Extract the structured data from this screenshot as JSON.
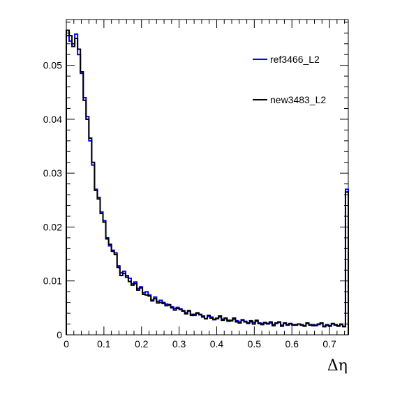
{
  "chart_data": {
    "type": "line",
    "style": "step-histogram",
    "title": "",
    "xlabel": "Δη",
    "ylabel": "",
    "xlim": [
      0,
      0.75
    ],
    "ylim": [
      0,
      0.0585
    ],
    "grid": false,
    "legend_position": "top-right",
    "x_tick_labels": [
      "0",
      "0.1",
      "0.2",
      "0.3",
      "0.4",
      "0.5",
      "0.6",
      "0.7"
    ],
    "x_tick_values": [
      0,
      0.1,
      0.2,
      0.3,
      0.4,
      0.5,
      0.6,
      0.7
    ],
    "y_tick_labels": [
      "0",
      "0.01",
      "0.02",
      "0.03",
      "0.04",
      "0.05"
    ],
    "y_tick_values": [
      0,
      0.01,
      0.02,
      0.03,
      0.04,
      0.05
    ],
    "bin_width": 0.0075,
    "series": [
      {
        "name": "ref3466_L2",
        "color": "#0000ff",
        "values": [
          0.0555,
          0.0545,
          0.054,
          0.0558,
          0.052,
          0.0485,
          0.044,
          0.0405,
          0.036,
          0.0315,
          0.027,
          0.0255,
          0.0228,
          0.0212,
          0.018,
          0.0165,
          0.0157,
          0.0152,
          0.0128,
          0.0115,
          0.0118,
          0.011,
          0.0105,
          0.0095,
          0.0098,
          0.0086,
          0.0089,
          0.0078,
          0.008,
          0.0074,
          0.0065,
          0.007,
          0.0062,
          0.0064,
          0.006,
          0.0057,
          0.0055,
          0.0052,
          0.0049,
          0.0051,
          0.0048,
          0.0045,
          0.0041,
          0.0044,
          0.0038,
          0.0036,
          0.004,
          0.0037,
          0.0035,
          0.003,
          0.0034,
          0.0033,
          0.0028,
          0.0031,
          0.0033,
          0.0029,
          0.003,
          0.0025,
          0.0027,
          0.0029,
          0.0026,
          0.0024,
          0.0027,
          0.0025,
          0.0021,
          0.0024,
          0.0023,
          0.0025,
          0.0022,
          0.0021,
          0.0023,
          0.002,
          0.0022,
          0.0019,
          0.0021,
          0.0023,
          0.0018,
          0.0021,
          0.0018,
          0.002,
          0.0019,
          0.0018,
          0.002,
          0.0019,
          0.0017,
          0.0021,
          0.0018,
          0.0019,
          0.0017,
          0.0019,
          0.0021,
          0.0016,
          0.0019,
          0.0017,
          0.002,
          0.0018,
          0.0017,
          0.002,
          0.0016,
          0.027
        ]
      },
      {
        "name": "new3483_L2",
        "color": "#000000",
        "values": [
          0.0565,
          0.0555,
          0.0535,
          0.055,
          0.053,
          0.0488,
          0.0435,
          0.04,
          0.0365,
          0.032,
          0.0268,
          0.0252,
          0.0225,
          0.0209,
          0.0178,
          0.0168,
          0.0155,
          0.0149,
          0.0125,
          0.011,
          0.0114,
          0.0107,
          0.0099,
          0.0092,
          0.0095,
          0.0083,
          0.0087,
          0.0075,
          0.0074,
          0.0072,
          0.0063,
          0.0067,
          0.0059,
          0.006,
          0.0058,
          0.0054,
          0.0056,
          0.005,
          0.0046,
          0.0049,
          0.0047,
          0.0044,
          0.0039,
          0.0045,
          0.0036,
          0.0038,
          0.0041,
          0.0038,
          0.0033,
          0.003,
          0.0036,
          0.0031,
          0.0029,
          0.003,
          0.0035,
          0.0027,
          0.0031,
          0.0027,
          0.0026,
          0.0031,
          0.0024,
          0.0022,
          0.0028,
          0.0024,
          0.0022,
          0.0026,
          0.002,
          0.0027,
          0.0021,
          0.0019,
          0.0022,
          0.0021,
          0.0024,
          0.0017,
          0.0022,
          0.0024,
          0.0016,
          0.0022,
          0.0019,
          0.0021,
          0.0018,
          0.0019,
          0.002,
          0.0018,
          0.0016,
          0.0022,
          0.0019,
          0.0017,
          0.0018,
          0.002,
          0.0022,
          0.0015,
          0.0018,
          0.0016,
          0.0021,
          0.0019,
          0.0016,
          0.0019,
          0.0015,
          0.0265
        ]
      }
    ]
  }
}
